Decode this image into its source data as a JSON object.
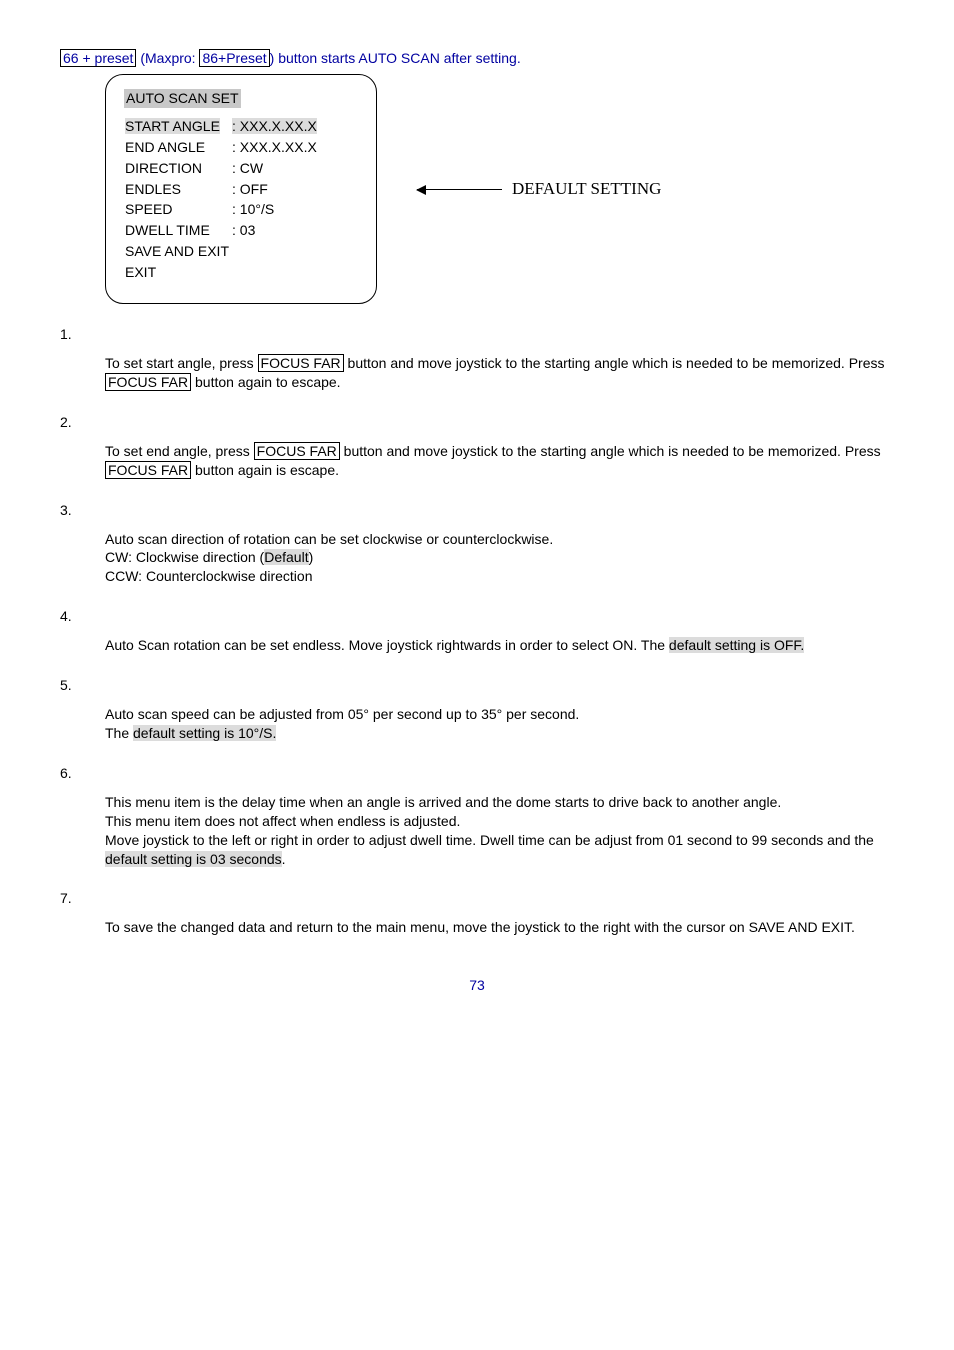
{
  "intro": {
    "pre1": "66 + preset",
    "mid": " (Maxpro: ",
    "pre2": "86+Preset",
    "post": ") button starts AUTO SCAN after setting."
  },
  "menu": {
    "title": "AUTO SCAN SET",
    "rows": [
      {
        "label": "START ANGLE",
        "value": ": XXX.X.XX.X",
        "hl": true
      },
      {
        "label": "END ANGLE",
        "value": ": XXX.X.XX.X",
        "hl": false
      },
      {
        "label": "DIRECTION",
        "value": ": CW",
        "hl": false
      },
      {
        "label": "ENDLES",
        "value": ": OFF",
        "hl": false
      },
      {
        "label": "SPEED",
        "value": ": 10°/S",
        "hl": false
      },
      {
        "label": "DWELL TIME",
        "value": ": 03",
        "hl": false
      },
      {
        "label": "SAVE AND EXIT",
        "value": "",
        "hl": false
      },
      {
        "label": "EXIT",
        "value": "",
        "hl": false
      }
    ]
  },
  "default_setting": "DEFAULT SETTING",
  "s1": {
    "num": "1.",
    "t1": "To set start angle, press ",
    "b1": "FOCUS FAR",
    "t2": " button and move joystick to the starting angle which is needed to be memorized. Press ",
    "b2": "FOCUS FAR",
    "t3": " button again to escape."
  },
  "s2": {
    "num": "2.",
    "t1": "To set end angle, press ",
    "b1": "FOCUS FAR",
    "t2": " button and move joystick to the starting angle which is needed to be memorized. Press ",
    "b2": "FOCUS FAR",
    "t3": " button again is escape."
  },
  "s3": {
    "num": "3.",
    "l1": "Auto scan direction of rotation can be set clockwise or counterclockwise.",
    "l2a": "CW: Clockwise direction (",
    "l2b": "Default",
    "l2c": ")",
    "l3": "CCW: Counterclockwise direction"
  },
  "s4": {
    "num": "4.",
    "t1": "Auto Scan rotation can be set endless. Move joystick rightwards in order to select ON. The ",
    "hl": "default setting is OFF."
  },
  "s5": {
    "num": "5.",
    "l1": "Auto scan speed can be adjusted from 05° per second up to 35° per second.",
    "l2a": "The ",
    "l2b": "default setting is 10°/S."
  },
  "s6": {
    "num": "6.",
    "l1": "This menu item is the delay time when an angle is arrived and the dome starts to drive back to another angle.",
    "l2": "This menu item does not affect when endless is adjusted.",
    "l3a": "Move joystick to the left or right in order to adjust dwell time. Dwell time can be adjust from 01 second to 99 seconds and the ",
    "l3b": "default setting is 03 seconds",
    "l3c": "."
  },
  "s7": {
    "num": "7.",
    "t": "To save the changed data and return to the main menu, move the joystick to the right with the cursor on SAVE AND EXIT."
  },
  "page": "73"
}
